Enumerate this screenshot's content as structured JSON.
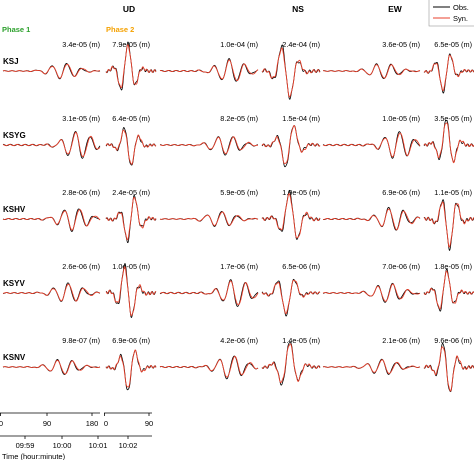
{
  "chart_data": {
    "type": "line",
    "title": "",
    "components": [
      "UD",
      "NS",
      "EW"
    ],
    "phases": [
      "Phase 1",
      "Phase 2"
    ],
    "phase_colors": {
      "Phase 1": "#2ca02c",
      "Phase 2": "#f5a100"
    },
    "legend": {
      "placement": "top-right",
      "entries": [
        {
          "label": "Obs.",
          "color": "#000000"
        },
        {
          "label": "Syn.",
          "color": "#e8412c"
        }
      ]
    },
    "amplitude_unit": "(m)",
    "stations": [
      {
        "name": "KSJ",
        "amplitudes": [
          "3.4e-05",
          "7.9e-05",
          "1.0e-04",
          "2.4e-04",
          "3.6e-05",
          "6.5e-05"
        ]
      },
      {
        "name": "KSYG",
        "amplitudes": [
          "3.1e-05",
          "6.4e-05",
          "8.2e-05",
          "1.5e-04",
          "1.0e-05",
          "3.5e-05"
        ]
      },
      {
        "name": "KSHV",
        "amplitudes": [
          "2.8e-06",
          "2.4e-05",
          "5.9e-05",
          "1.9e-05",
          "6.9e-06",
          "1.1e-05"
        ]
      },
      {
        "name": "KSYV",
        "amplitudes": [
          "2.6e-06",
          "1.0e-05",
          "1.7e-06",
          "6.5e-06",
          "7.0e-06",
          "1.8e-05"
        ]
      },
      {
        "name": "KSNV",
        "amplitudes": [
          "9.8e-07",
          "6.9e-06",
          "4.2e-06",
          "1.4e-05",
          "2.1e-06",
          "9.6e-06"
        ]
      }
    ],
    "axes": {
      "phase1_ticks": [
        "0",
        "90",
        "180"
      ],
      "phase1_time_labels": [
        "09:59",
        "10:00",
        "10:01"
      ],
      "phase2_ticks": [
        "0",
        "90"
      ],
      "phase2_time_labels": [
        "10:02"
      ],
      "xlabel": "Time (hour:minute)"
    },
    "line_colors": {
      "observed": "#000000",
      "synthetic": "#e8412c"
    }
  }
}
